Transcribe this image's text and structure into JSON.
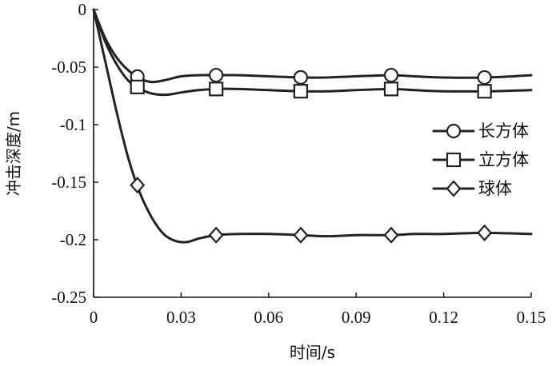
{
  "chart_data": {
    "type": "line",
    "xlabel": "时间/s",
    "ylabel": "冲击深度/m",
    "xlim": [
      0,
      0.15
    ],
    "ylim": [
      -0.25,
      0
    ],
    "x_ticks": [
      "0",
      "0.03",
      "0.06",
      "0.09",
      "0.12",
      "0.15"
    ],
    "y_ticks": [
      "0",
      "-0.05",
      "-0.1",
      "-0.15",
      "-0.2",
      "-0.25"
    ],
    "grid": false,
    "legend_position": "right",
    "line_color": "#222222",
    "series": [
      {
        "name": "长方体",
        "marker": "circle",
        "x": [
          0,
          0.004,
          0.008,
          0.012,
          0.016,
          0.02,
          0.025,
          0.03,
          0.036,
          0.042,
          0.05,
          0.06,
          0.072,
          0.08,
          0.09,
          0.102,
          0.11,
          0.12,
          0.135,
          0.15
        ],
        "y": [
          0,
          -0.025,
          -0.042,
          -0.053,
          -0.06,
          -0.063,
          -0.061,
          -0.058,
          -0.057,
          -0.057,
          -0.057,
          -0.058,
          -0.059,
          -0.059,
          -0.058,
          -0.057,
          -0.058,
          -0.059,
          -0.059,
          -0.057
        ],
        "marker_x": [
          0.015,
          0.042,
          0.071,
          0.102,
          0.134
        ]
      },
      {
        "name": "立方体",
        "marker": "square",
        "x": [
          0,
          0.004,
          0.008,
          0.012,
          0.016,
          0.02,
          0.025,
          0.03,
          0.036,
          0.042,
          0.05,
          0.06,
          0.072,
          0.08,
          0.09,
          0.102,
          0.11,
          0.12,
          0.135,
          0.15
        ],
        "y": [
          0,
          -0.028,
          -0.048,
          -0.062,
          -0.069,
          -0.073,
          -0.074,
          -0.072,
          -0.07,
          -0.069,
          -0.069,
          -0.07,
          -0.071,
          -0.071,
          -0.07,
          -0.069,
          -0.07,
          -0.071,
          -0.071,
          -0.07
        ],
        "marker_x": [
          0.015,
          0.042,
          0.071,
          0.102,
          0.134
        ]
      },
      {
        "name": "球体",
        "marker": "diamond",
        "x": [
          0,
          0.004,
          0.008,
          0.012,
          0.016,
          0.02,
          0.024,
          0.028,
          0.032,
          0.036,
          0.042,
          0.05,
          0.06,
          0.071,
          0.08,
          0.09,
          0.102,
          0.11,
          0.12,
          0.134,
          0.15
        ],
        "y": [
          0,
          -0.045,
          -0.09,
          -0.13,
          -0.16,
          -0.181,
          -0.195,
          -0.201,
          -0.202,
          -0.199,
          -0.196,
          -0.195,
          -0.195,
          -0.196,
          -0.197,
          -0.196,
          -0.196,
          -0.195,
          -0.195,
          -0.194,
          -0.195
        ],
        "marker_x": [
          0.015,
          0.042,
          0.071,
          0.102,
          0.134
        ]
      }
    ]
  }
}
